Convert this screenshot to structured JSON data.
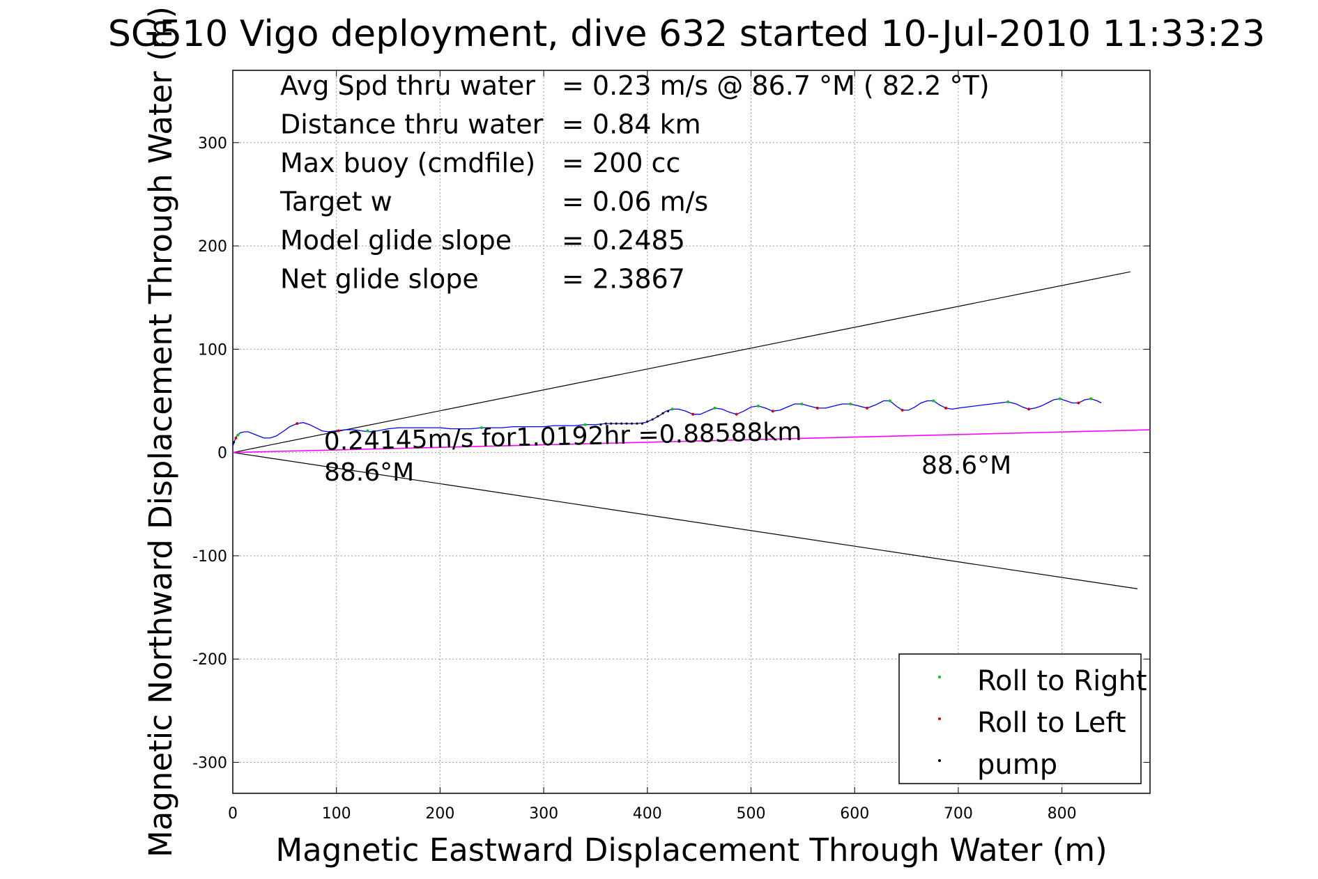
{
  "chart_data": {
    "type": "line",
    "title": "SG510 Vigo deployment, dive 632 started 10-Jul-2010 11:33:23",
    "xlabel": "Magnetic Eastward Displacement Through Water (m)",
    "ylabel": "Magnetic Northward Displacement Through Water (m)",
    "xlim": [
      0,
      885
    ],
    "ylim": [
      -330,
      370
    ],
    "xticks": [
      0,
      100,
      200,
      300,
      400,
      500,
      600,
      700,
      800
    ],
    "yticks": [
      -300,
      -200,
      -100,
      0,
      100,
      200,
      300
    ],
    "grid": true,
    "legend_position": "bottom-right",
    "info_lines": [
      {
        "label": "Avg Spd thru water",
        "value": "=  0.23 m/s @  86.7 °M ( 82.2 °T)"
      },
      {
        "label": "Distance thru water",
        "value": "=  0.84 km"
      },
      {
        "label": "Max buoy (cmdfile)",
        "value": "= 200 cc"
      },
      {
        "label": "Target w",
        "value": "= 0.06 m/s"
      },
      {
        "label": "Model glide slope",
        "value": "= 0.2485"
      },
      {
        "label": "Net glide slope",
        "value": "= 2.3867"
      }
    ],
    "annotations": {
      "speed_text": "0.24145m/s for1.0192hr =0.88588km",
      "heading_left": "88.6°M",
      "heading_right": "88.6°M"
    },
    "legend": [
      {
        "label": "Roll to Right",
        "color": "#00cc00"
      },
      {
        "label": "Roll to Left",
        "color": "#dd0000"
      },
      {
        "label": "pump",
        "color": "#000000"
      }
    ],
    "colors": {
      "track": "#0000ff",
      "heading_line": "#ff00ff",
      "cone": "#000000"
    },
    "cone_lines": [
      {
        "x": [
          0,
          866
        ],
        "y": [
          0,
          175
        ]
      },
      {
        "x": [
          0,
          873
        ],
        "y": [
          0,
          -132
        ]
      }
    ],
    "heading_line": {
      "x": [
        0,
        885
      ],
      "y": [
        0,
        22
      ]
    },
    "track": [
      [
        0,
        6
      ],
      [
        2,
        12
      ],
      [
        4,
        16
      ],
      [
        7,
        19
      ],
      [
        11,
        20
      ],
      [
        15,
        20
      ],
      [
        20,
        18
      ],
      [
        25,
        16
      ],
      [
        30,
        14
      ],
      [
        36,
        14
      ],
      [
        42,
        16
      ],
      [
        48,
        20
      ],
      [
        55,
        25
      ],
      [
        62,
        28
      ],
      [
        68,
        29
      ],
      [
        74,
        27
      ],
      [
        80,
        24
      ],
      [
        86,
        21
      ],
      [
        92,
        20
      ],
      [
        100,
        21
      ],
      [
        108,
        22
      ],
      [
        116,
        22
      ],
      [
        124,
        21
      ],
      [
        132,
        20
      ],
      [
        140,
        21
      ],
      [
        150,
        23
      ],
      [
        160,
        24
      ],
      [
        170,
        24
      ],
      [
        180,
        24
      ],
      [
        190,
        24
      ],
      [
        200,
        24
      ],
      [
        210,
        23
      ],
      [
        220,
        23
      ],
      [
        230,
        23
      ],
      [
        240,
        24
      ],
      [
        250,
        24
      ],
      [
        260,
        24
      ],
      [
        270,
        25
      ],
      [
        280,
        25
      ],
      [
        290,
        25
      ],
      [
        300,
        25
      ],
      [
        310,
        26
      ],
      [
        320,
        26
      ],
      [
        330,
        26
      ],
      [
        340,
        27
      ],
      [
        350,
        27
      ],
      [
        360,
        28
      ],
      [
        370,
        28
      ],
      [
        380,
        28
      ],
      [
        390,
        28
      ],
      [
        398,
        29
      ],
      [
        405,
        32
      ],
      [
        412,
        36
      ],
      [
        418,
        40
      ],
      [
        424,
        42
      ],
      [
        430,
        42
      ],
      [
        437,
        40
      ],
      [
        444,
        37
      ],
      [
        451,
        37
      ],
      [
        458,
        40
      ],
      [
        465,
        43
      ],
      [
        472,
        42
      ],
      [
        479,
        39
      ],
      [
        486,
        37
      ],
      [
        493,
        40
      ],
      [
        500,
        44
      ],
      [
        507,
        45
      ],
      [
        514,
        43
      ],
      [
        521,
        40
      ],
      [
        528,
        41
      ],
      [
        535,
        44
      ],
      [
        542,
        47
      ],
      [
        549,
        47
      ],
      [
        556,
        45
      ],
      [
        564,
        43
      ],
      [
        572,
        43
      ],
      [
        580,
        45
      ],
      [
        588,
        47
      ],
      [
        596,
        47
      ],
      [
        604,
        45
      ],
      [
        612,
        43
      ],
      [
        620,
        46
      ],
      [
        628,
        50
      ],
      [
        634,
        50
      ],
      [
        640,
        45
      ],
      [
        646,
        41
      ],
      [
        652,
        41
      ],
      [
        658,
        44
      ],
      [
        664,
        48
      ],
      [
        670,
        50
      ],
      [
        676,
        50
      ],
      [
        682,
        46
      ],
      [
        688,
        43
      ],
      [
        694,
        42
      ],
      [
        700,
        43
      ],
      [
        708,
        44
      ],
      [
        716,
        45
      ],
      [
        724,
        46
      ],
      [
        732,
        47
      ],
      [
        740,
        48
      ],
      [
        748,
        49
      ],
      [
        756,
        47
      ],
      [
        762,
        44
      ],
      [
        768,
        42
      ],
      [
        774,
        43
      ],
      [
        780,
        45
      ],
      [
        786,
        48
      ],
      [
        792,
        51
      ],
      [
        798,
        52
      ],
      [
        804,
        50
      ],
      [
        810,
        48
      ],
      [
        816,
        48
      ],
      [
        822,
        51
      ],
      [
        828,
        52
      ],
      [
        834,
        50
      ],
      [
        838,
        48
      ]
    ],
    "roll_right_points": [
      [
        5,
        17
      ],
      [
        130,
        21
      ],
      [
        240,
        24
      ],
      [
        340,
        27
      ],
      [
        424,
        42
      ],
      [
        465,
        43
      ],
      [
        507,
        45
      ],
      [
        549,
        47
      ],
      [
        596,
        47
      ],
      [
        634,
        50
      ],
      [
        676,
        50
      ],
      [
        748,
        49
      ],
      [
        798,
        52
      ],
      [
        828,
        52
      ]
    ],
    "roll_left_points": [
      [
        3,
        14
      ],
      [
        62,
        28
      ],
      [
        102,
        21
      ],
      [
        444,
        37
      ],
      [
        486,
        37
      ],
      [
        521,
        40
      ],
      [
        564,
        43
      ],
      [
        612,
        43
      ],
      [
        646,
        41
      ],
      [
        688,
        43
      ],
      [
        768,
        42
      ],
      [
        816,
        48
      ]
    ],
    "pump_points": [
      [
        1,
        10
      ],
      [
        355,
        27
      ],
      [
        360,
        28
      ],
      [
        365,
        28
      ],
      [
        370,
        28
      ],
      [
        375,
        28
      ],
      [
        380,
        28
      ],
      [
        385,
        28
      ],
      [
        390,
        28
      ],
      [
        395,
        28
      ],
      [
        400,
        30
      ],
      [
        405,
        32
      ],
      [
        410,
        35
      ],
      [
        415,
        38
      ],
      [
        420,
        40
      ]
    ]
  }
}
